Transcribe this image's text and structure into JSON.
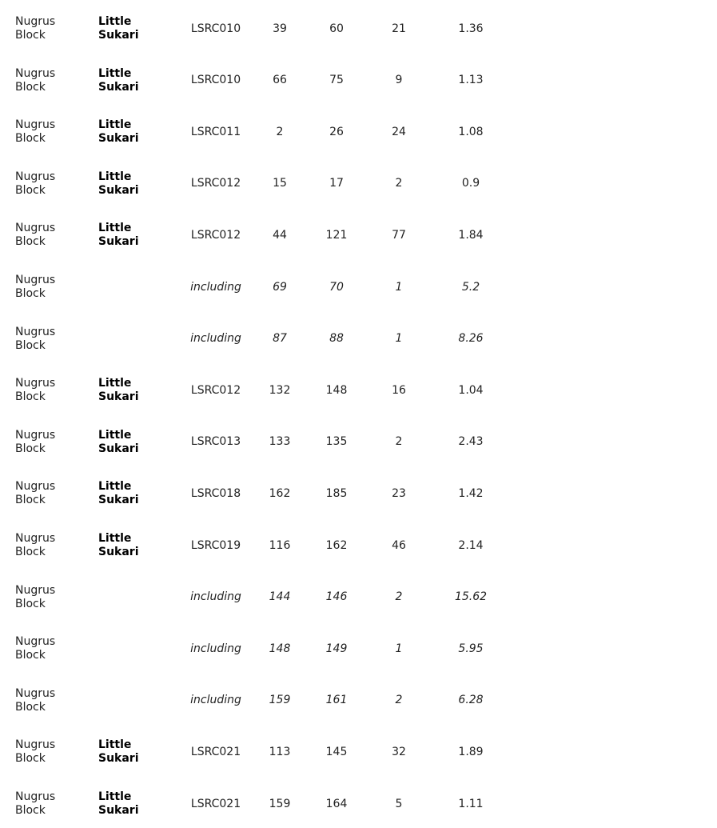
{
  "table": {
    "rows": [
      [
        "Nugrus Block",
        "Little Sukari",
        "LSRC010",
        39,
        60,
        21,
        1.36
      ],
      [
        "Nugrus Block",
        "Little Sukari",
        "LSRC010",
        66,
        75,
        9,
        1.13
      ],
      [
        "Nugrus Block",
        "Little Sukari",
        "LSRC011",
        2,
        26,
        24,
        1.08
      ],
      [
        "Nugrus Block",
        "Little Sukari",
        "LSRC012",
        15,
        17,
        2,
        0.9
      ],
      [
        "Nugrus Block",
        "Little Sukari",
        "LSRC012",
        44,
        121,
        77,
        1.84
      ],
      [
        "Nugrus Block",
        null,
        "including",
        69,
        70,
        1,
        5.2
      ],
      [
        "Nugrus Block",
        null,
        "including",
        87,
        88,
        1,
        8.26
      ],
      [
        "Nugrus Block",
        "Little Sukari",
        "LSRC012",
        132,
        148,
        16,
        1.04
      ],
      [
        "Nugrus Block",
        "Little Sukari",
        "LSRC013",
        133,
        135,
        2,
        2.43
      ],
      [
        "Nugrus Block",
        "Little Sukari",
        "LSRC018",
        162,
        185,
        23,
        1.42
      ],
      [
        "Nugrus Block",
        "Little Sukari",
        "LSRC019",
        116,
        162,
        46,
        2.14
      ],
      [
        "Nugrus Block",
        null,
        "including",
        144,
        146,
        2,
        15.62
      ],
      [
        "Nugrus Block",
        null,
        "including",
        148,
        149,
        1,
        5.95
      ],
      [
        "Nugrus Block",
        null,
        "including",
        159,
        161,
        2,
        6.28
      ],
      [
        "Nugrus Block",
        "Little Sukari",
        "LSRC021",
        113,
        145,
        32,
        1.89
      ],
      [
        "Nugrus Block",
        "Little Sukari",
        "LSRC021",
        159,
        164,
        5,
        1.11
      ]
    ]
  }
}
